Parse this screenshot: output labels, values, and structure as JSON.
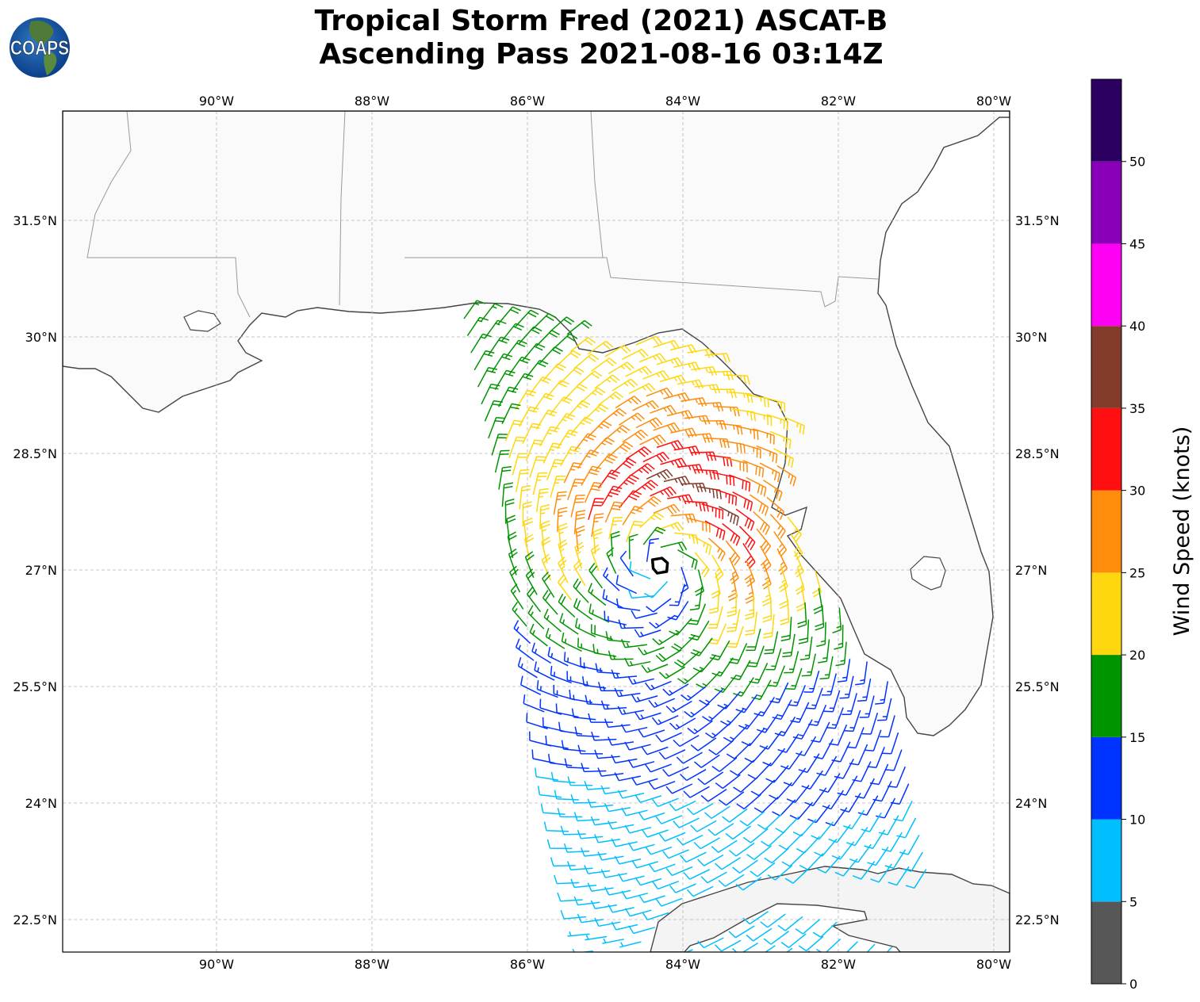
{
  "title": {
    "line1": "Tropical Storm Fred (2021) ASCAT-B",
    "line2": "Ascending Pass 2021-08-16 03:14Z"
  },
  "logo": {
    "text": "COAPS"
  },
  "map": {
    "extent": {
      "lon_min": -91.98,
      "lon_max": -79.8,
      "lat_min": 22.08,
      "lat_max": 32.91
    },
    "lon_ticks": [
      {
        "value": -90,
        "label": "90°W"
      },
      {
        "value": -88,
        "label": "88°W"
      },
      {
        "value": -86,
        "label": "86°W"
      },
      {
        "value": -84,
        "label": "84°W"
      },
      {
        "value": -82,
        "label": "82°W"
      },
      {
        "value": -80,
        "label": "80°W"
      }
    ],
    "lat_ticks": [
      {
        "value": 31.5,
        "label": "31.5°N"
      },
      {
        "value": 30,
        "label": "30°N"
      },
      {
        "value": 28.5,
        "label": "28.5°N"
      },
      {
        "value": 27,
        "label": "27°N"
      },
      {
        "value": 25.5,
        "label": "25.5°N"
      },
      {
        "value": 24,
        "label": "24°N"
      },
      {
        "value": 22.5,
        "label": "22.5°N"
      }
    ],
    "storm_center": {
      "lon": -84.3,
      "lat": 27.03,
      "symbol": "storm-center-icon"
    },
    "wind_field": {
      "peak_speed_kt": 27,
      "radius_max_wind_deg": 1.1
    }
  },
  "colorbar": {
    "label": "Wind Speed (knots)",
    "min": 0,
    "max": 55,
    "bins": [
      {
        "from": 0,
        "to": 5,
        "color": "#575757"
      },
      {
        "from": 5,
        "to": 10,
        "color": "#00bfff"
      },
      {
        "from": 10,
        "to": 15,
        "color": "#0033ff"
      },
      {
        "from": 15,
        "to": 20,
        "color": "#009400"
      },
      {
        "from": 20,
        "to": 25,
        "color": "#fed70f"
      },
      {
        "from": 25,
        "to": 30,
        "color": "#ff8c0a"
      },
      {
        "from": 30,
        "to": 35,
        "color": "#ff0f0f"
      },
      {
        "from": 35,
        "to": 40,
        "color": "#833c2b"
      },
      {
        "from": 40,
        "to": 45,
        "color": "#ff00f5"
      },
      {
        "from": 45,
        "to": 50,
        "color": "#8a00b8"
      },
      {
        "from": 50,
        "to": 55,
        "color": "#2c0061"
      }
    ],
    "ticks": [
      {
        "value": 0,
        "label": "0"
      },
      {
        "value": 5,
        "label": "5"
      },
      {
        "value": 10,
        "label": "10"
      },
      {
        "value": 15,
        "label": "15"
      },
      {
        "value": 20,
        "label": "20"
      },
      {
        "value": 25,
        "label": "25"
      },
      {
        "value": 30,
        "label": "30"
      },
      {
        "value": 35,
        "label": "35"
      },
      {
        "value": 40,
        "label": "40"
      },
      {
        "value": 45,
        "label": "45"
      },
      {
        "value": 50,
        "label": "50"
      }
    ]
  }
}
